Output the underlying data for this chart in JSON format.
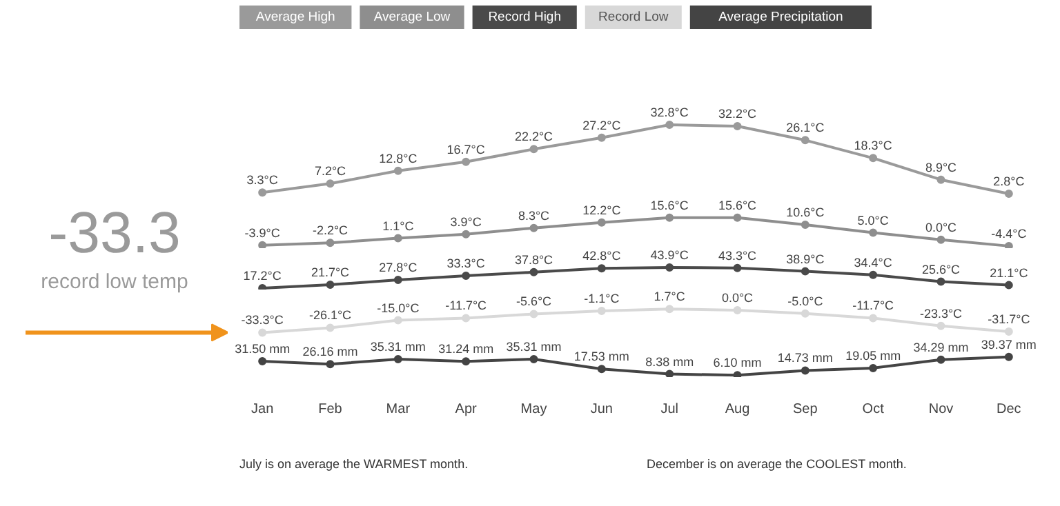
{
  "chart_data": [
    {
      "type": "line",
      "legend": "top left",
      "marker": "circle",
      "grid": false,
      "tick_labels": false,
      "line_style": "solid",
      "categories": [
        null,
        null,
        null,
        null,
        null,
        null,
        null,
        null,
        null,
        null,
        null,
        null
      ],
      "series": [
        {
          "name": "Average High",
          "color": "#9a9a9a",
          "values": [
            3.3,
            7.2,
            12.8,
            16.7,
            22.2,
            27.2,
            32.8,
            32.2,
            26.1,
            18.3,
            8.9,
            2.8
          ],
          "value_labels": [
            "3.3°C",
            "7.2°C",
            "12.8°C",
            "16.7°C",
            "22.2°C",
            "27.2°C",
            "32.8°C",
            "32.2°C",
            "26.1°C",
            "18.3°C",
            "8.9°C",
            "2.8°C"
          ]
        }
      ]
    },
    {
      "type": "line",
      "marker": "circle",
      "grid": false,
      "tick_labels": false,
      "categories": [
        null,
        null,
        null,
        null,
        null,
        null,
        null,
        null,
        null,
        null,
        null,
        null
      ],
      "series": [
        {
          "name": "Average Low",
          "color": "#8e8e8e",
          "values": [
            -3.9,
            -2.2,
            1.1,
            3.9,
            8.3,
            12.2,
            15.6,
            15.6,
            10.6,
            5.0,
            0.0,
            -4.4
          ],
          "value_labels": [
            "-3.9°C",
            "-2.2°C",
            "1.1°C",
            "3.9°C",
            "8.3°C",
            "12.2°C",
            "15.6°C",
            "15.6°C",
            "10.6°C",
            "5.0°C",
            "0.0°C",
            "-4.4°C"
          ]
        }
      ]
    },
    {
      "type": "line",
      "marker": "circle",
      "grid": false,
      "tick_labels": false,
      "categories": [
        null,
        null,
        null,
        null,
        null,
        null,
        null,
        null,
        null,
        null,
        null,
        null
      ],
      "series": [
        {
          "name": "Record High",
          "color": "#4a4a4a",
          "values": [
            17.2,
            21.7,
            27.8,
            33.3,
            37.8,
            42.8,
            43.9,
            43.3,
            38.9,
            34.4,
            25.6,
            21.1
          ],
          "value_labels": [
            "17.2°C",
            "21.7°C",
            "27.8°C",
            "33.3°C",
            "37.8°C",
            "42.8°C",
            "43.9°C",
            "43.3°C",
            "38.9°C",
            "34.4°C",
            "25.6°C",
            "21.1°C"
          ]
        }
      ]
    },
    {
      "type": "line",
      "marker": "circle",
      "grid": false,
      "tick_labels": false,
      "categories": [
        null,
        null,
        null,
        null,
        null,
        null,
        null,
        null,
        null,
        null,
        null,
        null
      ],
      "series": [
        {
          "name": "Record Low",
          "color": "#d8d8d8",
          "values": [
            -33.3,
            -26.1,
            -15.0,
            -11.7,
            -5.6,
            -1.1,
            1.7,
            0.0,
            -5.0,
            -11.7,
            -23.3,
            -31.7
          ],
          "value_labels": [
            "-33.3°C",
            "-26.1°C",
            "-15.0°C",
            "-11.7°C",
            "-5.6°C",
            "-1.1°C",
            "1.7°C",
            "0.0°C",
            "-5.0°C",
            "-11.7°C",
            "-23.3°C",
            "-31.7°C"
          ]
        }
      ],
      "annotations": [
        "-33.3\nrecord low temp"
      ]
    },
    {
      "type": "line",
      "marker": "circle",
      "grid": false,
      "tick_labels": "x",
      "categories": [
        "Jan",
        "Feb",
        "Mar",
        "Apr",
        "May",
        "Jun",
        "Jul",
        "Aug",
        "Sep",
        "Oct",
        "Nov",
        "Dec"
      ],
      "series": [
        {
          "name": "Average Precipitation",
          "color": "#444444",
          "values": [
            31.5,
            26.16,
            35.31,
            31.24,
            35.31,
            17.53,
            8.38,
            6.1,
            14.73,
            19.05,
            34.29,
            39.37
          ],
          "value_labels": [
            "31.50 mm",
            "26.16 mm",
            "35.31 mm",
            "31.24 mm",
            "35.31 mm",
            "17.53 mm",
            "8.38 mm",
            "6.10 mm",
            "14.73 mm",
            "19.05 mm",
            "34.29 mm",
            "39.37 mm"
          ]
        }
      ],
      "annotations": [
        "July is on average the WARMEST month.",
        "December is on average the COOLEST month."
      ]
    }
  ]
}
